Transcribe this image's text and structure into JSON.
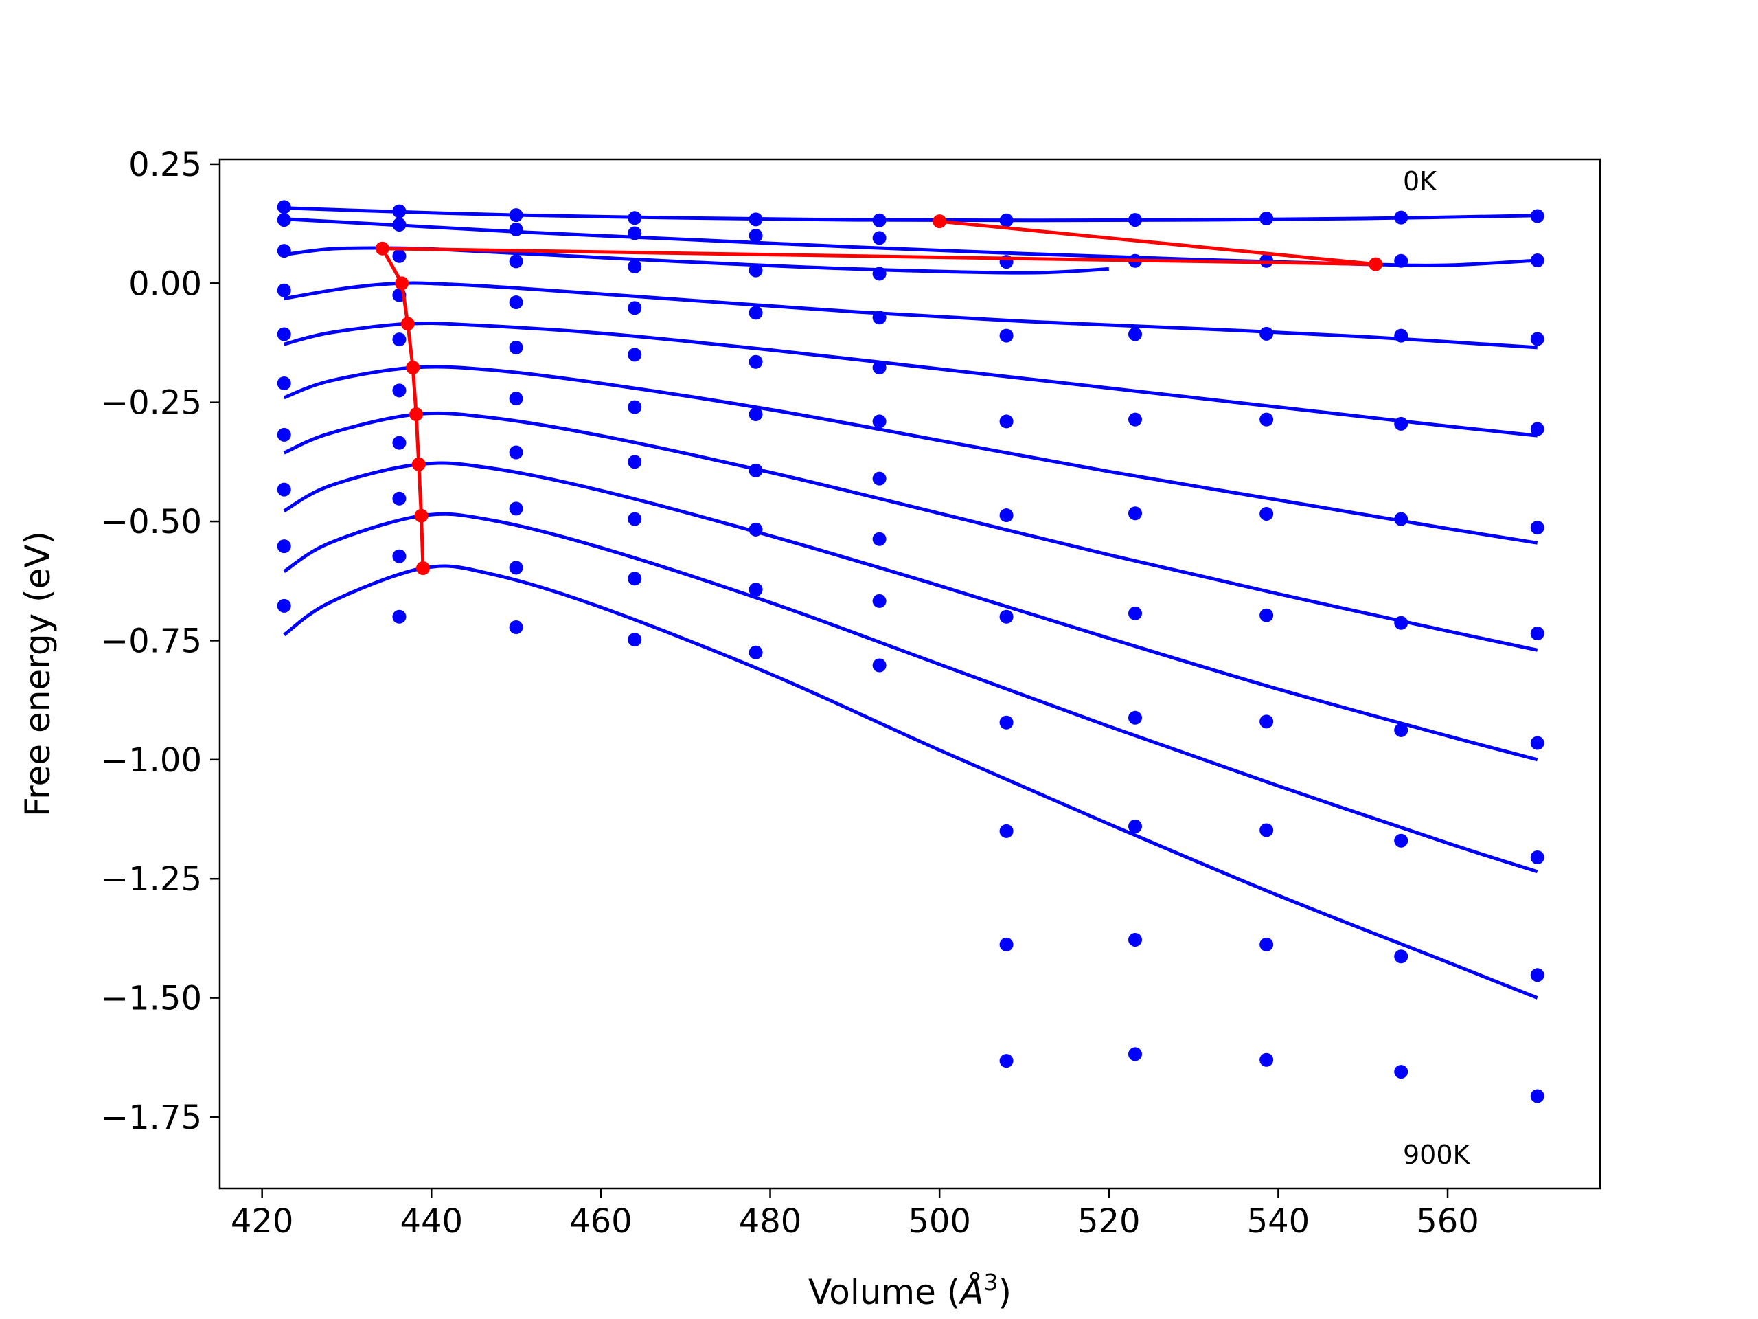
{
  "chart_data": {
    "type": "scatter",
    "xlabel_prefix": "Volume (",
    "xlabel_unit": "Å",
    "xlabel_sup": "3",
    "xlabel_suffix": ")",
    "ylabel": "Free energy (eV)",
    "xlim": [
      415,
      578
    ],
    "ylim": [
      -1.9,
      0.26
    ],
    "x_ticks": [
      420,
      440,
      460,
      480,
      500,
      520,
      540,
      560
    ],
    "y_ticks": [
      0.25,
      0.0,
      -0.25,
      -0.5,
      -0.75,
      -1.0,
      -1.25,
      -1.5,
      -1.75
    ],
    "y_tick_labels": [
      "0.25",
      "0.00",
      "−0.25",
      "−0.50",
      "−0.75",
      "−1.00",
      "−1.25",
      "−1.50",
      "−1.75"
    ],
    "annotations": [
      {
        "text": "0K",
        "x": 554,
        "y": 0.195
      },
      {
        "text": "900K",
        "x": 554,
        "y": -1.845
      }
    ],
    "colors": {
      "fit": "#0000ff",
      "points": "#0000ff",
      "minima": "#ff0000"
    },
    "volumes": [
      422.6,
      436.2,
      450.0,
      464.0,
      478.3,
      492.9,
      507.9,
      523.1,
      538.6,
      554.5,
      570.6
    ],
    "series": [
      {
        "values": [
          0.16,
          0.151,
          0.143,
          0.137,
          0.134,
          0.132,
          0.132,
          0.133,
          0.136,
          0.138,
          0.141
        ]
      },
      {
        "values": [
          0.133,
          0.123,
          0.113,
          0.105,
          0.1,
          0.095,
          0.045,
          0.047,
          0.047,
          0.047,
          0.048
        ]
      },
      {
        "values": [
          0.068,
          0.057,
          0.046,
          0.035,
          0.027,
          0.02,
          -0.11,
          -0.107,
          -0.106,
          -0.11,
          -0.117
        ]
      },
      {
        "values": [
          -0.015,
          -0.025,
          -0.04,
          -0.052,
          -0.062,
          -0.072,
          -0.29,
          -0.286,
          -0.286,
          -0.295,
          -0.306
        ]
      },
      {
        "values": [
          -0.107,
          -0.118,
          -0.135,
          -0.15,
          -0.165,
          -0.177,
          -0.487,
          -0.483,
          -0.484,
          -0.495,
          -0.513
        ]
      },
      {
        "values": [
          -0.21,
          -0.225,
          -0.242,
          -0.26,
          -0.275,
          -0.29,
          -0.7,
          -0.693,
          -0.697,
          -0.713,
          -0.735
        ]
      },
      {
        "values": [
          -0.318,
          -0.335,
          -0.355,
          -0.375,
          -0.393,
          -0.41,
          -0.922,
          -0.912,
          -0.92,
          -0.938,
          -0.965
        ]
      },
      {
        "values": [
          -0.433,
          -0.452,
          -0.473,
          -0.495,
          -0.517,
          -0.537,
          -1.15,
          -1.14,
          -1.148,
          -1.17,
          -1.205
        ]
      },
      {
        "values": [
          -0.552,
          -0.573,
          -0.597,
          -0.62,
          -0.643,
          -0.667,
          -1.388,
          -1.378,
          -1.388,
          -1.413,
          -1.452
        ]
      },
      {
        "values": [
          -0.677,
          -0.7,
          -0.722,
          -0.748,
          -0.775,
          -0.802,
          -1.632,
          -1.618,
          -1.63,
          -1.655,
          -1.706
        ]
      }
    ],
    "fits": [
      {
        "points": [
          [
            422.6,
            0.158
          ],
          [
            436,
            0.15
          ],
          [
            450,
            0.143
          ],
          [
            470,
            0.137
          ],
          [
            490,
            0.133
          ],
          [
            510,
            0.132
          ],
          [
            530,
            0.133
          ],
          [
            550,
            0.136
          ],
          [
            570.6,
            0.142
          ]
        ]
      },
      {
        "points": [
          [
            422.6,
            0.135
          ],
          [
            436,
            0.122
          ],
          [
            450,
            0.108
          ],
          [
            470,
            0.092
          ],
          [
            490,
            0.076
          ],
          [
            510,
            0.062
          ],
          [
            530,
            0.05
          ],
          [
            550,
            0.04
          ],
          [
            560,
            0.038
          ],
          [
            570.6,
            0.048
          ]
        ]
      },
      {
        "points": [
          [
            422.6,
            0.06
          ],
          [
            428,
            0.072
          ],
          [
            434,
            0.074
          ],
          [
            440,
            0.072
          ],
          [
            450,
            0.063
          ],
          [
            470,
            0.045
          ],
          [
            490,
            0.03
          ],
          [
            510,
            0.022
          ],
          [
            520,
            0.03
          ]
        ]
      },
      {
        "points": [
          [
            422.6,
            -0.032
          ],
          [
            430,
            -0.01
          ],
          [
            436.5,
            0.0
          ],
          [
            442,
            -0.002
          ],
          [
            450,
            -0.01
          ],
          [
            470,
            -0.035
          ],
          [
            490,
            -0.06
          ],
          [
            510,
            -0.08
          ],
          [
            530,
            -0.095
          ],
          [
            550,
            -0.112
          ],
          [
            570.6,
            -0.135
          ]
        ]
      },
      {
        "points": [
          [
            422.6,
            -0.128
          ],
          [
            428,
            -0.104
          ],
          [
            437.2,
            -0.085
          ],
          [
            445,
            -0.088
          ],
          [
            460,
            -0.105
          ],
          [
            480,
            -0.14
          ],
          [
            500,
            -0.18
          ],
          [
            520,
            -0.22
          ],
          [
            540,
            -0.26
          ],
          [
            560,
            -0.3
          ],
          [
            570.6,
            -0.32
          ]
        ]
      },
      {
        "points": [
          [
            422.6,
            -0.24
          ],
          [
            428,
            -0.205
          ],
          [
            437.8,
            -0.177
          ],
          [
            447,
            -0.182
          ],
          [
            460,
            -0.21
          ],
          [
            480,
            -0.265
          ],
          [
            500,
            -0.33
          ],
          [
            520,
            -0.395
          ],
          [
            540,
            -0.455
          ],
          [
            560,
            -0.515
          ],
          [
            570.6,
            -0.545
          ]
        ]
      },
      {
        "points": [
          [
            422.6,
            -0.356
          ],
          [
            428,
            -0.315
          ],
          [
            438.2,
            -0.275
          ],
          [
            447,
            -0.282
          ],
          [
            460,
            -0.32
          ],
          [
            480,
            -0.397
          ],
          [
            500,
            -0.483
          ],
          [
            520,
            -0.57
          ],
          [
            540,
            -0.652
          ],
          [
            560,
            -0.73
          ],
          [
            570.6,
            -0.77
          ]
        ]
      },
      {
        "points": [
          [
            422.6,
            -0.478
          ],
          [
            428,
            -0.425
          ],
          [
            438.5,
            -0.38
          ],
          [
            447,
            -0.388
          ],
          [
            460,
            -0.435
          ],
          [
            480,
            -0.53
          ],
          [
            500,
            -0.635
          ],
          [
            520,
            -0.745
          ],
          [
            540,
            -0.852
          ],
          [
            560,
            -0.95
          ],
          [
            570.6,
            -1.0
          ]
        ]
      },
      {
        "points": [
          [
            422.6,
            -0.605
          ],
          [
            428,
            -0.545
          ],
          [
            438.8,
            -0.488
          ],
          [
            447,
            -0.497
          ],
          [
            460,
            -0.555
          ],
          [
            480,
            -0.67
          ],
          [
            500,
            -0.8
          ],
          [
            520,
            -0.93
          ],
          [
            540,
            -1.055
          ],
          [
            560,
            -1.175
          ],
          [
            570.6,
            -1.235
          ]
        ]
      },
      {
        "points": [
          [
            422.6,
            -0.738
          ],
          [
            428,
            -0.67
          ],
          [
            439,
            -0.598
          ],
          [
            447,
            -0.61
          ],
          [
            460,
            -0.68
          ],
          [
            480,
            -0.82
          ],
          [
            500,
            -0.98
          ],
          [
            520,
            -1.135
          ],
          [
            540,
            -1.285
          ],
          [
            560,
            -1.425
          ],
          [
            570.6,
            -1.5
          ]
        ]
      }
    ],
    "minima_lines": [
      {
        "points": [
          [
            500,
            0.13
          ],
          [
            551.5,
            0.04
          ]
        ]
      },
      {
        "points": [
          [
            551.5,
            0.04
          ],
          [
            434.2,
            0.073
          ],
          [
            436.5,
            0.0
          ],
          [
            437.2,
            -0.085
          ],
          [
            437.8,
            -0.177
          ],
          [
            438.2,
            -0.275
          ],
          [
            438.5,
            -0.38
          ],
          [
            438.8,
            -0.488
          ],
          [
            439,
            -0.598
          ]
        ]
      }
    ],
    "minima_points": [
      [
        500,
        0.13
      ],
      [
        551.5,
        0.04
      ],
      [
        434.2,
        0.073
      ],
      [
        436.5,
        0.0
      ],
      [
        437.2,
        -0.085
      ],
      [
        437.8,
        -0.177
      ],
      [
        438.2,
        -0.275
      ],
      [
        438.5,
        -0.38
      ],
      [
        438.8,
        -0.488
      ],
      [
        439,
        -0.598
      ]
    ]
  }
}
